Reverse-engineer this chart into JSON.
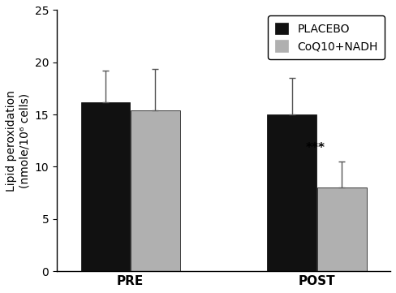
{
  "groups": [
    "PRE",
    "POST"
  ],
  "series": [
    "PLACEBO",
    "CoQ10+NADH"
  ],
  "values": {
    "PRE": [
      16.2,
      15.4
    ],
    "POST": [
      15.0,
      8.0
    ]
  },
  "errors": {
    "PRE": [
      3.0,
      4.0
    ],
    "POST": [
      3.5,
      2.5
    ]
  },
  "bar_colors": [
    "#111111",
    "#b0b0b0"
  ],
  "bar_width": 0.42,
  "group_centers": [
    1.0,
    2.6
  ],
  "bar_gap": 0.01,
  "ylim": [
    0,
    25
  ],
  "yticks": [
    0,
    5,
    10,
    15,
    20,
    25
  ],
  "ylabel": "Lipid peroxidation\n(nmole/10⁶ cells)",
  "ylabel_fontsize": 10,
  "tick_fontsize": 10,
  "xtick_fontsize": 11,
  "legend_labels": [
    "PLACEBO",
    "CoQ10+NADH"
  ],
  "legend_fontsize": 10,
  "annotation_text": "***",
  "annotation_group": "POST",
  "annotation_series": 1,
  "background_color": "#ffffff",
  "edge_color": "#000000"
}
